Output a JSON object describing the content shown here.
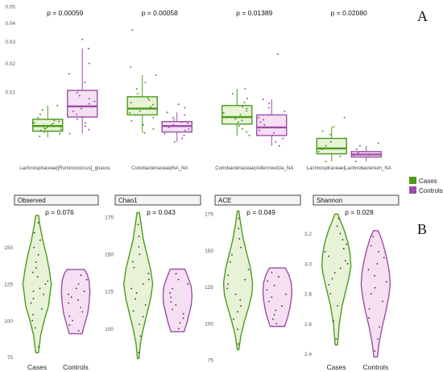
{
  "panel_a_letter": "A",
  "panel_b_letter": "B",
  "colors": {
    "cases": "#4d9a1f",
    "controls": "#9a4fa5",
    "cases_fill": "#e7f2d6",
    "controls_fill": "#f6dff3"
  },
  "legend": {
    "items": [
      {
        "label": "Cases",
        "color": "#4d9a1f"
      },
      {
        "label": "Controls",
        "color": "#9a4fa5"
      }
    ]
  },
  "chart_data": [
    {
      "type": "box",
      "panel": "A",
      "y_scale": "sqrt",
      "ylim": [
        0,
        0.05
      ],
      "y_ticks": [
        0.01,
        0.02,
        0.03,
        0.04,
        0.05
      ],
      "y_tick_labels": [
        "0.01",
        "0.02",
        "0.03",
        "0.04",
        "0.05"
      ],
      "groups": [
        "Cases",
        "Controls"
      ],
      "categories": [
        {
          "label": "Lachnospiraceae|[Ruminococcus]_gnavus",
          "pvalue": "p = 0.00059",
          "boxes": [
            {
              "group": "Cases",
              "min": 0.0012,
              "q1": 0.0019,
              "median": 0.0026,
              "q3": 0.0037,
              "max": 0.0065,
              "points": [
                0.0013,
                0.0016,
                0.0018,
                0.0019,
                0.002,
                0.0021,
                0.0022,
                0.0023,
                0.0024,
                0.0025,
                0.0026,
                0.0027,
                0.0028,
                0.003,
                0.0031,
                0.0033,
                0.0035,
                0.0037,
                0.004,
                0.0046,
                0.0055,
                0.0065
              ]
            },
            {
              "group": "Controls",
              "min": 0.0016,
              "q1": 0.0041,
              "median": 0.0063,
              "q3": 0.0105,
              "max": 0.0265,
              "points": [
                0.0016,
                0.0021,
                0.0026,
                0.0031,
                0.0037,
                0.0041,
                0.0046,
                0.0052,
                0.0058,
                0.0063,
                0.0069,
                0.0075,
                0.0082,
                0.009,
                0.0098,
                0.0105,
                0.013,
                0.016,
                0.02,
                0.0265,
                0.031,
                0.046
              ]
            }
          ]
        },
        {
          "label": "Coriobacteriaceae|NA_NA",
          "pvalue": "p = 0.00058",
          "boxes": [
            {
              "group": "Cases",
              "min": 0.0017,
              "q1": 0.0045,
              "median": 0.0058,
              "q3": 0.0087,
              "max": 0.0155,
              "points": [
                0.0017,
                0.0022,
                0.0028,
                0.0034,
                0.004,
                0.0045,
                0.0049,
                0.0053,
                0.0058,
                0.0062,
                0.0067,
                0.0072,
                0.0078,
                0.0083,
                0.0087,
                0.0095,
                0.011,
                0.013,
                0.0155,
                0.0185,
                0.036
              ]
            },
            {
              "group": "Controls",
              "min": 0.0008,
              "q1": 0.0018,
              "median": 0.0026,
              "q3": 0.0033,
              "max": 0.005,
              "points": [
                0.0008,
                0.0011,
                0.0014,
                0.0016,
                0.0018,
                0.002,
                0.0022,
                0.0024,
                0.0026,
                0.0028,
                0.003,
                0.0032,
                0.0033,
                0.0036,
                0.004,
                0.0045,
                0.005,
                0.006,
                0.0068
              ]
            }
          ]
        },
        {
          "label": "Coriobacteriaceae|Adlercreutzia_NA",
          "pvalue": "p = 0.01389",
          "boxes": [
            {
              "group": "Cases",
              "min": 0.0014,
              "q1": 0.0029,
              "median": 0.0041,
              "q3": 0.0065,
              "max": 0.011,
              "points": [
                0.0014,
                0.0018,
                0.0022,
                0.0026,
                0.0029,
                0.0032,
                0.0035,
                0.0038,
                0.0041,
                0.0045,
                0.0049,
                0.0053,
                0.0058,
                0.0062,
                0.0065,
                0.0072,
                0.0082,
                0.0095,
                0.011
              ]
            },
            {
              "group": "Controls",
              "min": 0.0005,
              "q1": 0.0014,
              "median": 0.0024,
              "q3": 0.0045,
              "max": 0.008,
              "points": [
                0.0005,
                0.0008,
                0.0011,
                0.0014,
                0.0017,
                0.002,
                0.0024,
                0.0028,
                0.0032,
                0.0036,
                0.004,
                0.0045,
                0.0052,
                0.006,
                0.007,
                0.008,
                0.024
              ]
            }
          ]
        },
        {
          "label": "Lachnospiraceae|Lachnobacterium_NA",
          "pvalue": "p = 0.02080",
          "boxes": [
            {
              "group": "Cases",
              "min": 0.0,
              "q1": 0.00012,
              "median": 0.00035,
              "q3": 0.0011,
              "max": 0.0025,
              "points": [
                0.0,
                5e-05,
                0.00012,
                0.0002,
                0.0003,
                0.00035,
                0.0005,
                0.0008,
                0.0011,
                0.0015,
                0.0019,
                0.0025,
                0.004
              ]
            },
            {
              "group": "Controls",
              "min": 0.0,
              "q1": 4e-05,
              "median": 0.0001,
              "q3": 0.0002,
              "max": 0.0005,
              "points": [
                0.0,
                4e-05,
                8e-05,
                0.0001,
                0.00015,
                0.0002,
                0.0003,
                0.0005,
                0.0007
              ]
            }
          ]
        }
      ]
    },
    {
      "type": "violin",
      "panel": "B",
      "x_categories": [
        "Cases",
        "Controls"
      ],
      "facets": [
        {
          "title": "Observed",
          "pvalue": "p = 0.076",
          "ylim": [
            72,
            178
          ],
          "y_ticks": [
            75,
            100,
            125,
            150
          ],
          "y_tick_labels": [
            "75",
            "100",
            "125",
            "150"
          ],
          "groups": [
            {
              "name": "Cases",
              "min": 78,
              "max": 172,
              "profile": [
                [
                  78,
                  0.1
                ],
                [
                  90,
                  0.25
                ],
                [
                  100,
                  0.5
                ],
                [
                  110,
                  0.8
                ],
                [
                  118,
                  0.9
                ],
                [
                  125,
                  1.0
                ],
                [
                  135,
                  0.85
                ],
                [
                  145,
                  0.65
                ],
                [
                  155,
                  0.4
                ],
                [
                  165,
                  0.2
                ],
                [
                  172,
                  0.1
                ]
              ],
              "points": [
                82,
                95,
                100,
                104,
                108,
                112,
                115,
                118,
                120,
                122,
                125,
                127,
                130,
                133,
                136,
                140,
                145,
                150,
                155,
                160,
                167
              ]
            },
            {
              "name": "Controls",
              "min": 91,
              "max": 135,
              "profile": [
                [
                  91,
                  0.45
                ],
                [
                  98,
                  0.65
                ],
                [
                  105,
                  0.85
                ],
                [
                  112,
                  0.95
                ],
                [
                  120,
                  1.0
                ],
                [
                  127,
                  0.95
                ],
                [
                  132,
                  0.8
                ],
                [
                  135,
                  0.6
                ]
              ],
              "points": [
                93,
                97,
                100,
                103,
                106,
                109,
                112,
                114,
                116,
                118,
                120,
                122,
                125,
                128,
                131
              ]
            }
          ]
        },
        {
          "title": "Chao1",
          "pvalue": "p = 0.043",
          "ylim": [
            78,
            182
          ],
          "y_ticks": [
            100,
            125,
            150,
            175
          ],
          "y_tick_labels": [
            "100",
            "125",
            "150",
            "175"
          ],
          "groups": [
            {
              "name": "Cases",
              "min": 80,
              "max": 178,
              "profile": [
                [
                  80,
                  0.05
                ],
                [
                  90,
                  0.15
                ],
                [
                  100,
                  0.35
                ],
                [
                  110,
                  0.6
                ],
                [
                  120,
                  0.85
                ],
                [
                  130,
                  1.0
                ],
                [
                  140,
                  0.85
                ],
                [
                  150,
                  0.6
                ],
                [
                  160,
                  0.35
                ],
                [
                  170,
                  0.2
                ],
                [
                  178,
                  0.08
                ]
              ],
              "points": [
                84,
                95,
                103,
                108,
                112,
                116,
                120,
                124,
                127,
                130,
                133,
                137,
                141,
                145,
                150,
                155,
                162,
                170
              ]
            },
            {
              "name": "Controls",
              "min": 98,
              "max": 140,
              "profile": [
                [
                  98,
                  0.45
                ],
                [
                  104,
                  0.65
                ],
                [
                  110,
                  0.8
                ],
                [
                  116,
                  0.95
                ],
                [
                  122,
                  1.0
                ],
                [
                  128,
                  0.95
                ],
                [
                  134,
                  0.75
                ],
                [
                  140,
                  0.5
                ]
              ],
              "points": [
                100,
                104,
                107,
                110,
                113,
                116,
                118,
                121,
                124,
                127,
                130,
                133,
                137
              ]
            }
          ]
        },
        {
          "title": "ACE",
          "pvalue": "p = 0.049",
          "ylim": [
            74,
            180
          ],
          "y_ticks": [
            75,
            100,
            125,
            150,
            175
          ],
          "y_tick_labels": [
            "75",
            "100",
            "125",
            "150",
            "175"
          ],
          "groups": [
            {
              "name": "Cases",
              "min": 82,
              "max": 177,
              "profile": [
                [
                  82,
                  0.05
                ],
                [
                  92,
                  0.2
                ],
                [
                  102,
                  0.45
                ],
                [
                  112,
                  0.75
                ],
                [
                  120,
                  0.95
                ],
                [
                  128,
                  1.0
                ],
                [
                  138,
                  0.85
                ],
                [
                  148,
                  0.6
                ],
                [
                  158,
                  0.35
                ],
                [
                  168,
                  0.18
                ],
                [
                  177,
                  0.05
                ]
              ],
              "points": [
                86,
                96,
                103,
                108,
                112,
                116,
                120,
                124,
                127,
                130,
                133,
                137,
                142,
                147,
                152,
                158,
                165,
                172
              ]
            },
            {
              "name": "Controls",
              "min": 98,
              "max": 138,
              "profile": [
                [
                  98,
                  0.5
                ],
                [
                  104,
                  0.7
                ],
                [
                  110,
                  0.85
                ],
                [
                  116,
                  0.95
                ],
                [
                  122,
                  1.0
                ],
                [
                  128,
                  0.95
                ],
                [
                  133,
                  0.8
                ],
                [
                  138,
                  0.55
                ]
              ],
              "points": [
                100,
                103,
                106,
                109,
                112,
                115,
                118,
                120,
                123,
                126,
                129,
                132,
                135
              ]
            }
          ]
        },
        {
          "title": "Shannon",
          "pvalue": "p = 0.028",
          "ylim": [
            2.35,
            3.38
          ],
          "y_ticks": [
            2.4,
            2.6,
            2.8,
            3.0,
            3.2
          ],
          "y_tick_labels": [
            "2.4",
            "2.6",
            "2.8",
            "3.0",
            "3.2"
          ],
          "groups": [
            {
              "name": "Cases",
              "min": 2.46,
              "max": 3.33,
              "profile": [
                [
                  2.46,
                  0.08
                ],
                [
                  2.6,
                  0.2
                ],
                [
                  2.72,
                  0.4
                ],
                [
                  2.82,
                  0.65
                ],
                [
                  2.9,
                  0.85
                ],
                [
                  2.98,
                  1.0
                ],
                [
                  3.06,
                  0.95
                ],
                [
                  3.14,
                  0.8
                ],
                [
                  3.22,
                  0.55
                ],
                [
                  3.28,
                  0.3
                ],
                [
                  3.33,
                  0.1
                ]
              ],
              "points": [
                2.5,
                2.62,
                2.72,
                2.8,
                2.86,
                2.9,
                2.94,
                2.97,
                3.0,
                3.02,
                3.05,
                3.08,
                3.1,
                3.13,
                3.16,
                3.2,
                3.25,
                3.3
              ]
            },
            {
              "name": "Controls",
              "min": 2.38,
              "max": 3.22,
              "profile": [
                [
                  2.38,
                  0.12
                ],
                [
                  2.48,
                  0.25
                ],
                [
                  2.58,
                  0.45
                ],
                [
                  2.68,
                  0.7
                ],
                [
                  2.78,
                  0.9
                ],
                [
                  2.86,
                  1.0
                ],
                [
                  2.94,
                  0.95
                ],
                [
                  3.02,
                  0.8
                ],
                [
                  3.1,
                  0.6
                ],
                [
                  3.18,
                  0.35
                ],
                [
                  3.22,
                  0.15
                ]
              ],
              "points": [
                2.42,
                2.5,
                2.58,
                2.64,
                2.7,
                2.75,
                2.8,
                2.84,
                2.88,
                2.92,
                2.96,
                3.0,
                3.04,
                3.08,
                3.12,
                3.18
              ]
            }
          ]
        }
      ]
    }
  ]
}
